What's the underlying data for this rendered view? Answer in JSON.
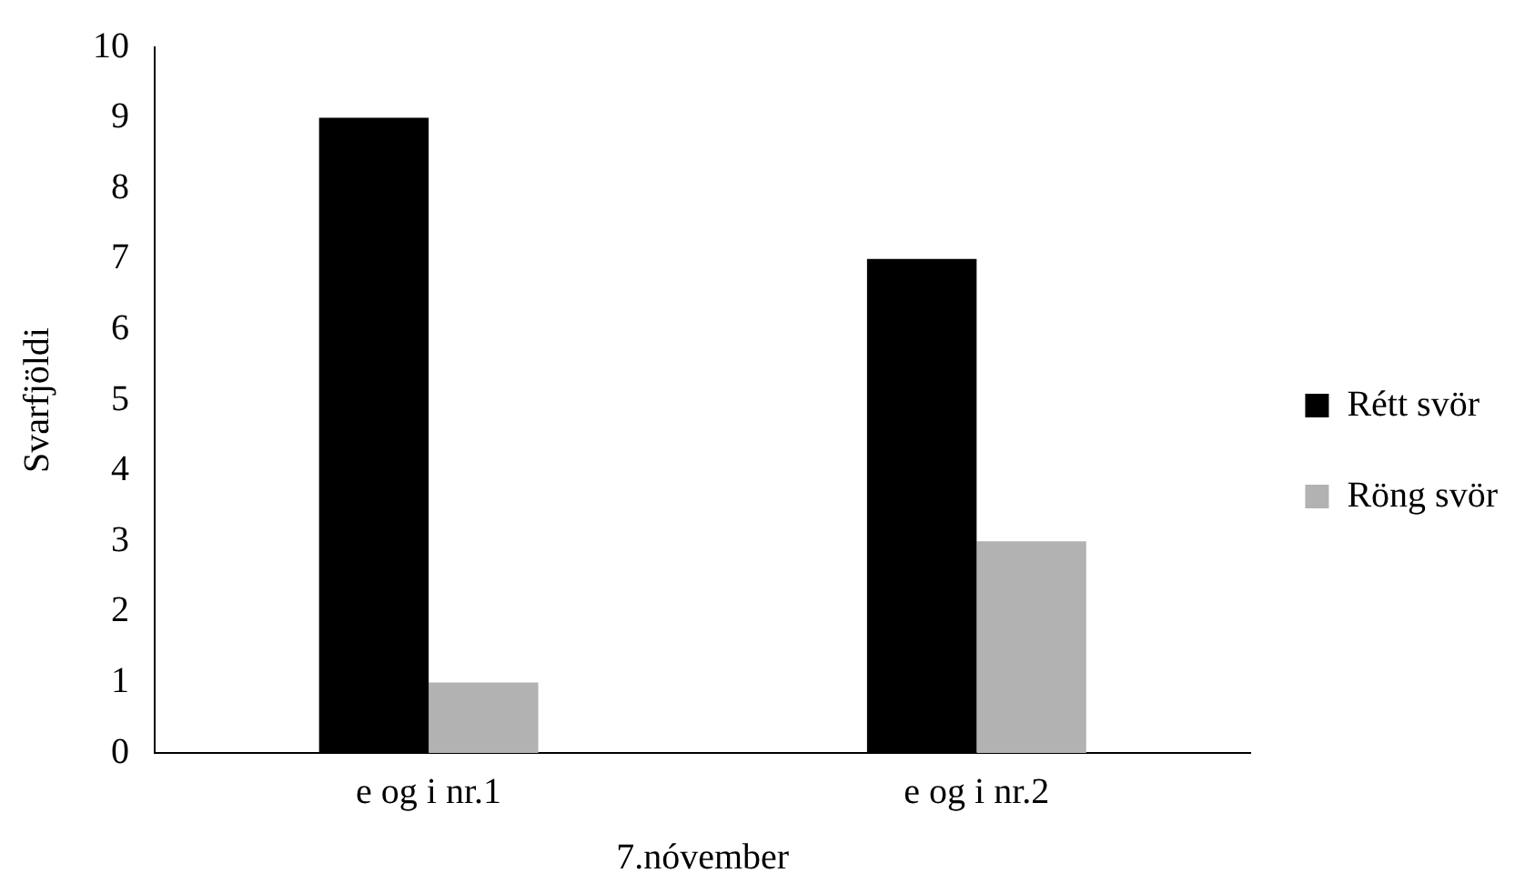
{
  "chart_data": {
    "type": "bar",
    "xlabel": "7.nóvember",
    "ylabel": "Svarfjöldi",
    "categories": [
      "e og i nr.1",
      "e og i nr.2"
    ],
    "series": [
      {
        "name": "Rétt svör",
        "color": "#000000",
        "values": [
          9,
          7
        ]
      },
      {
        "name": "Röng svör",
        "color": "#b2b2b2",
        "values": [
          1,
          3
        ]
      }
    ],
    "ylim": [
      0,
      10
    ],
    "yticks": [
      0,
      1,
      2,
      3,
      4,
      5,
      6,
      7,
      8,
      9,
      10
    ],
    "grid": false,
    "legend": "right"
  }
}
